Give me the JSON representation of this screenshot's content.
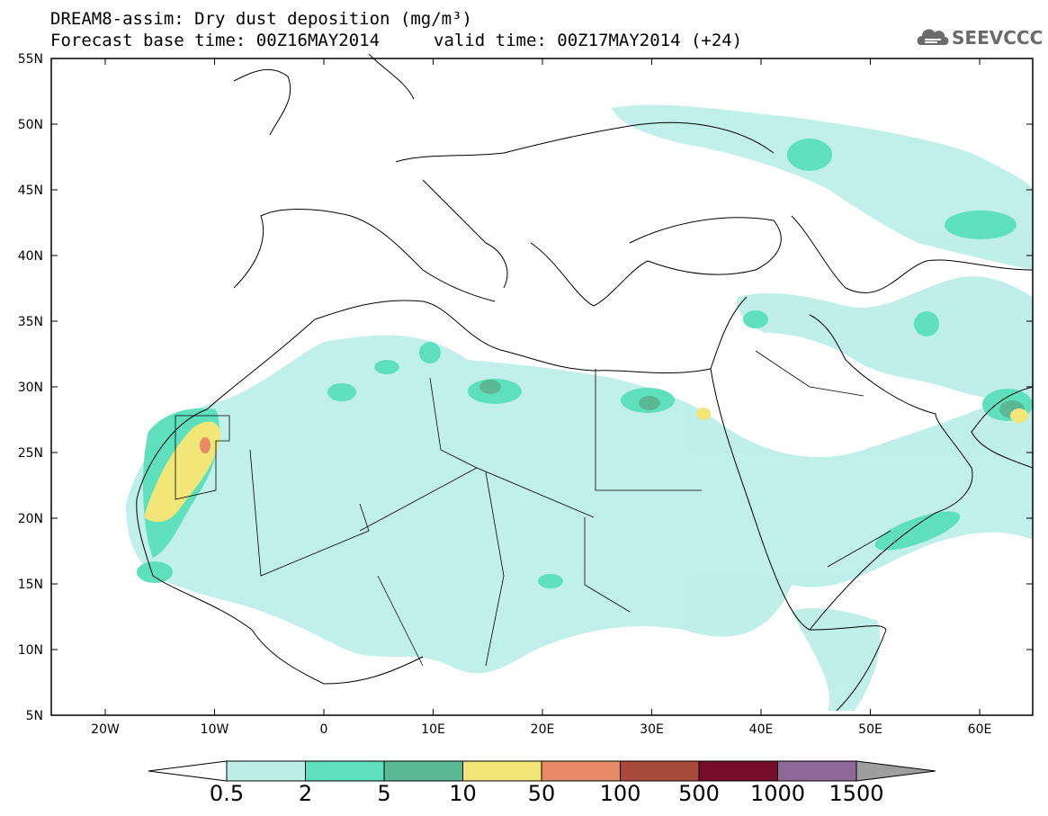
{
  "header": {
    "line1": "DREAM8-assim: Dry dust deposition (mg/m³)",
    "line2": "Forecast base time: 00Z16MAY2014",
    "valid": "valid time: 00Z17MAY2014 (+24)",
    "logo_text": "SEEVCCC"
  },
  "axes": {
    "lat_labels": [
      "55N",
      "50N",
      "45N",
      "40N",
      "35N",
      "30N",
      "25N",
      "20N",
      "15N",
      "10N",
      "5N"
    ],
    "lon_labels": [
      "20W",
      "10W",
      "0",
      "10E",
      "20E",
      "30E",
      "40E",
      "50E",
      "60E"
    ]
  },
  "legend": {
    "labels": [
      "0.5",
      "2",
      "5",
      "10",
      "50",
      "100",
      "500",
      "1000",
      "1500"
    ],
    "colors": [
      "#bdefe8",
      "#5fe0bc",
      "#5ab894",
      "#f2e678",
      "#e88a66",
      "#a84a3e",
      "#760e2a",
      "#8e6898",
      "#9e9e9e"
    ]
  },
  "colors": {
    "land_line": "#000000",
    "frame": "#000000"
  }
}
